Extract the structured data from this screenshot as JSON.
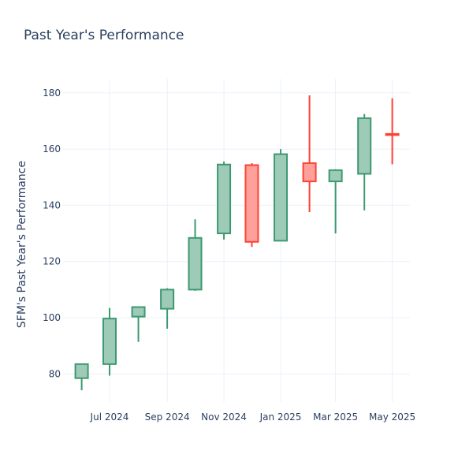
{
  "chart_data": {
    "type": "candlestick",
    "title": "Past Year's Performance",
    "xlabel": "",
    "ylabel": "SFM's Past Year's Performance",
    "ylim": [
      70,
      185
    ],
    "xlim": [
      "2024-05-12",
      "2025-05-20"
    ],
    "grid": true,
    "y_ticks": [
      80,
      100,
      120,
      140,
      160,
      180
    ],
    "x_ticks": [
      {
        "date": "2024-07-01",
        "label": "Jul 2024"
      },
      {
        "date": "2024-09-01",
        "label": "Sep 2024"
      },
      {
        "date": "2024-11-01",
        "label": "Nov 2024"
      },
      {
        "date": "2025-01-01",
        "label": "Jan 2025"
      },
      {
        "date": "2025-03-01",
        "label": "Mar 2025"
      },
      {
        "date": "2025-05-01",
        "label": "May 2025"
      }
    ],
    "candles": [
      {
        "date": "2024-06-01",
        "open": 78.5,
        "high": 83.5,
        "low": 74.2,
        "close": 83.5
      },
      {
        "date": "2024-07-01",
        "open": 83.5,
        "high": 103.5,
        "low": 79.4,
        "close": 99.7
      },
      {
        "date": "2024-08-01",
        "open": 100.4,
        "high": 104.0,
        "low": 91.4,
        "close": 103.8
      },
      {
        "date": "2024-09-01",
        "open": 103.2,
        "high": 110.5,
        "low": 96.1,
        "close": 110.0
      },
      {
        "date": "2024-10-01",
        "open": 110.0,
        "high": 135.0,
        "low": 109.6,
        "close": 128.4
      },
      {
        "date": "2024-11-01",
        "open": 130.0,
        "high": 155.6,
        "low": 127.8,
        "close": 154.5
      },
      {
        "date": "2024-12-01",
        "open": 154.3,
        "high": 155.0,
        "low": 125.2,
        "close": 127.0
      },
      {
        "date": "2025-01-01",
        "open": 127.4,
        "high": 160.0,
        "low": 127.3,
        "close": 158.2
      },
      {
        "date": "2025-02-01",
        "open": 155.0,
        "high": 179.1,
        "low": 137.6,
        "close": 148.5
      },
      {
        "date": "2025-03-01",
        "open": 148.5,
        "high": 152.8,
        "low": 130.0,
        "close": 152.5
      },
      {
        "date": "2025-04-01",
        "open": 151.2,
        "high": 172.5,
        "low": 138.2,
        "close": 171.0
      },
      {
        "date": "2025-05-01",
        "open": 165.4,
        "high": 178.1,
        "low": 154.6,
        "close": 165.0
      }
    ],
    "colors": {
      "increasing_line": "#3d9970",
      "increasing_fill": "#9ecbb7",
      "decreasing_line": "#ff4136",
      "decreasing_fill": "#ffa09a"
    }
  }
}
